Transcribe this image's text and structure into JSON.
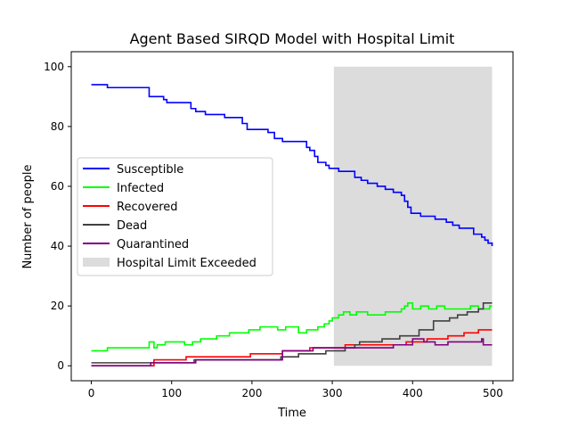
{
  "chart_data": {
    "type": "line",
    "title": "Agent Based SIRQD Model with Hospital Limit",
    "xlabel": "Time",
    "ylabel": "Number of people",
    "xlim": [
      -25,
      525
    ],
    "ylim": [
      -5,
      105
    ],
    "xticks": [
      0,
      100,
      200,
      300,
      400,
      500
    ],
    "yticks": [
      0,
      20,
      40,
      60,
      80,
      100
    ],
    "grid": false,
    "legend_position": "center-left",
    "highlight_region": {
      "name": "Hospital Limit Exceeded",
      "x": [
        302,
        499
      ],
      "y": [
        0,
        100
      ],
      "color": "#dcdcdc"
    },
    "series": [
      {
        "name": "Susceptible",
        "color": "#0000ff",
        "x": [
          0,
          18,
          20,
          68,
          72,
          90,
          94,
          110,
          124,
          130,
          142,
          166,
          188,
          194,
          220,
          228,
          238,
          242,
          268,
          272,
          278,
          282,
          292,
          296,
          302,
          308,
          312,
          328,
          336,
          344,
          356,
          366,
          376,
          386,
          390,
          394,
          398,
          404,
          410,
          420,
          428,
          434,
          442,
          450,
          458,
          476,
          486,
          490,
          494,
          499
        ],
        "y": [
          94,
          94,
          93,
          93,
          90,
          89,
          88,
          88,
          86,
          85,
          84,
          83,
          81,
          79,
          78,
          76,
          75,
          75,
          73,
          72,
          70,
          68,
          67,
          66,
          66,
          65,
          65,
          63,
          62,
          61,
          60,
          59,
          58,
          57,
          55,
          53,
          51,
          51,
          50,
          50,
          49,
          49,
          48,
          47,
          46,
          44,
          43,
          42,
          41,
          40
        ]
      },
      {
        "name": "Infected",
        "color": "#00ff00",
        "x": [
          0,
          18,
          20,
          68,
          72,
          78,
          82,
          92,
          110,
          116,
          126,
          136,
          156,
          172,
          186,
          196,
          210,
          220,
          232,
          242,
          258,
          268,
          282,
          290,
          296,
          300,
          308,
          314,
          322,
          330,
          344,
          366,
          376,
          386,
          390,
          394,
          400,
          410,
          420,
          430,
          440,
          454,
          472,
          482,
          496,
          499
        ],
        "y": [
          5,
          5,
          6,
          6,
          8,
          6,
          7,
          8,
          8,
          7,
          8,
          9,
          10,
          11,
          11,
          12,
          13,
          13,
          12,
          13,
          11,
          12,
          13,
          14,
          15,
          16,
          17,
          18,
          17,
          18,
          17,
          18,
          18,
          19,
          20,
          21,
          19,
          20,
          19,
          20,
          19,
          19,
          20,
          19,
          20,
          20
        ]
      },
      {
        "name": "Recovered",
        "color": "#ff0000",
        "x": [
          0,
          78,
          118,
          198,
          238,
          272,
          316,
          356,
          392,
          418,
          444,
          464,
          482,
          499
        ],
        "y": [
          0,
          2,
          3,
          4,
          5,
          6,
          7,
          7,
          8,
          9,
          10,
          11,
          12,
          12
        ]
      },
      {
        "name": "Dead",
        "color": "#404040",
        "x": [
          0,
          30,
          64,
          70,
          128,
          236,
          258,
          292,
          316,
          328,
          334,
          362,
          384,
          408,
          426,
          446,
          456,
          468,
          482,
          488,
          499
        ],
        "y": [
          1,
          1,
          1,
          1,
          2,
          3,
          4,
          5,
          6,
          7,
          8,
          9,
          10,
          12,
          15,
          16,
          17,
          18,
          19,
          21,
          21
        ]
      },
      {
        "name": "Quarantined",
        "color": "#800080",
        "x": [
          0,
          70,
          74,
          130,
          238,
          276,
          324,
          376,
          400,
          414,
          428,
          444,
          480,
          486,
          488,
          499
        ],
        "y": [
          0,
          0,
          1,
          2,
          5,
          6,
          6,
          7,
          9,
          8,
          7,
          8,
          8,
          9,
          7,
          7
        ]
      }
    ]
  }
}
